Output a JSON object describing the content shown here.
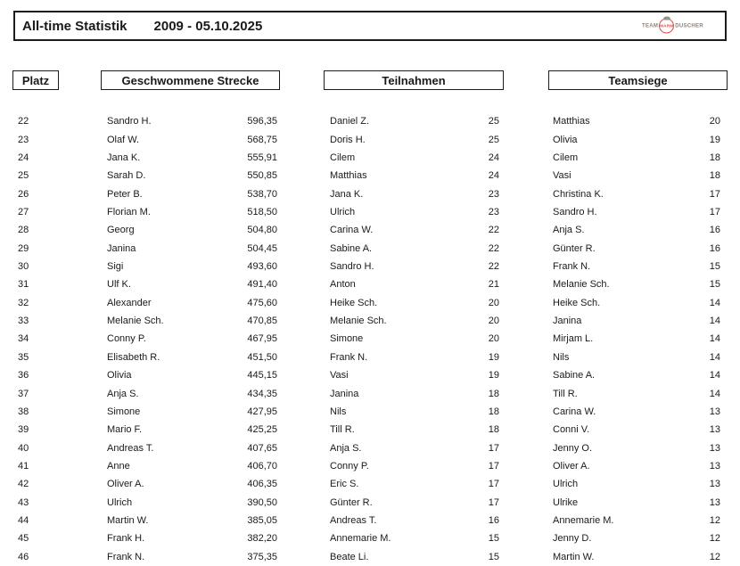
{
  "header": {
    "title": "All-time Statistik",
    "date_range": "2009 - 05.10.2025",
    "logo": {
      "team": "TEAM",
      "warm": "WARM",
      "duscher": "DUSCHER",
      "accent_color": "#d94f4f"
    }
  },
  "columns": {
    "platz_label": "Platz",
    "strecke_label": "Geschwommene Strecke",
    "teilnahmen_label": "Teilnahmen",
    "teamsiege_label": "Teamsiege"
  },
  "table": {
    "platz": [
      22,
      23,
      24,
      25,
      26,
      27,
      28,
      29,
      30,
      31,
      32,
      33,
      34,
      35,
      36,
      37,
      38,
      39,
      40,
      41,
      42,
      43,
      44,
      45,
      46
    ],
    "strecke": [
      {
        "name": "Sandro H.",
        "value": "596,35"
      },
      {
        "name": "Olaf W.",
        "value": "568,75"
      },
      {
        "name": "Jana K.",
        "value": "555,91"
      },
      {
        "name": "Sarah D.",
        "value": "550,85"
      },
      {
        "name": "Peter B.",
        "value": "538,70"
      },
      {
        "name": "Florian M.",
        "value": "518,50"
      },
      {
        "name": "Georg",
        "value": "504,80"
      },
      {
        "name": "Janina",
        "value": "504,45"
      },
      {
        "name": "Sigi",
        "value": "493,60"
      },
      {
        "name": "Ulf K.",
        "value": "491,40"
      },
      {
        "name": "Alexander",
        "value": "475,60"
      },
      {
        "name": "Melanie Sch.",
        "value": "470,85"
      },
      {
        "name": "Conny P.",
        "value": "467,95"
      },
      {
        "name": "Elisabeth R.",
        "value": "451,50"
      },
      {
        "name": "Olivia",
        "value": "445,15"
      },
      {
        "name": "Anja S.",
        "value": "434,35"
      },
      {
        "name": "Simone",
        "value": "427,95"
      },
      {
        "name": "Mario F.",
        "value": "425,25"
      },
      {
        "name": "Andreas T.",
        "value": "407,65"
      },
      {
        "name": "Anne",
        "value": "406,70"
      },
      {
        "name": "Oliver A.",
        "value": "406,35"
      },
      {
        "name": "Ulrich",
        "value": "390,50"
      },
      {
        "name": "Martin W.",
        "value": "385,05"
      },
      {
        "name": "Frank H.",
        "value": "382,20"
      },
      {
        "name": "Frank N.",
        "value": "375,35"
      }
    ],
    "teilnahmen": [
      {
        "name": "Daniel Z.",
        "value": "25"
      },
      {
        "name": "Doris H.",
        "value": "25"
      },
      {
        "name": "Cilem",
        "value": "24"
      },
      {
        "name": "Matthias",
        "value": "24"
      },
      {
        "name": "Jana K.",
        "value": "23"
      },
      {
        "name": "Ulrich",
        "value": "23"
      },
      {
        "name": "Carina W.",
        "value": "22"
      },
      {
        "name": "Sabine A.",
        "value": "22"
      },
      {
        "name": "Sandro H.",
        "value": "22"
      },
      {
        "name": "Anton",
        "value": "21"
      },
      {
        "name": "Heike Sch.",
        "value": "20"
      },
      {
        "name": "Melanie Sch.",
        "value": "20"
      },
      {
        "name": "Simone",
        "value": "20"
      },
      {
        "name": "Frank N.",
        "value": "19"
      },
      {
        "name": "Vasi",
        "value": "19"
      },
      {
        "name": "Janina",
        "value": "18"
      },
      {
        "name": "Nils",
        "value": "18"
      },
      {
        "name": "Till R.",
        "value": "18"
      },
      {
        "name": "Anja S.",
        "value": "17"
      },
      {
        "name": "Conny P.",
        "value": "17"
      },
      {
        "name": "Eric S.",
        "value": "17"
      },
      {
        "name": "Günter R.",
        "value": "17"
      },
      {
        "name": "Andreas T.",
        "value": "16"
      },
      {
        "name": "Annemarie M.",
        "value": "15"
      },
      {
        "name": "Beate Li.",
        "value": "15"
      }
    ],
    "teamsiege": [
      {
        "name": "Matthias",
        "value": "20"
      },
      {
        "name": "Olivia",
        "value": "19"
      },
      {
        "name": "Cilem",
        "value": "18"
      },
      {
        "name": "Vasi",
        "value": "18"
      },
      {
        "name": "Christina K.",
        "value": "17"
      },
      {
        "name": "Sandro H.",
        "value": "17"
      },
      {
        "name": "Anja S.",
        "value": "16"
      },
      {
        "name": "Günter R.",
        "value": "16"
      },
      {
        "name": "Frank N.",
        "value": "15"
      },
      {
        "name": "Melanie Sch.",
        "value": "15"
      },
      {
        "name": "Heike Sch.",
        "value": "14"
      },
      {
        "name": "Janina",
        "value": "14"
      },
      {
        "name": "Mirjam L.",
        "value": "14"
      },
      {
        "name": "Nils",
        "value": "14"
      },
      {
        "name": "Sabine A.",
        "value": "14"
      },
      {
        "name": "Till R.",
        "value": "14"
      },
      {
        "name": "Carina W.",
        "value": "13"
      },
      {
        "name": "Conni V.",
        "value": "13"
      },
      {
        "name": "Jenny O.",
        "value": "13"
      },
      {
        "name": "Oliver A.",
        "value": "13"
      },
      {
        "name": "Ulrich",
        "value": "13"
      },
      {
        "name": "Ulrike",
        "value": "13"
      },
      {
        "name": "Annemarie M.",
        "value": "12"
      },
      {
        "name": "Jenny D.",
        "value": "12"
      },
      {
        "name": "Martin W.",
        "value": "12"
      }
    ]
  }
}
